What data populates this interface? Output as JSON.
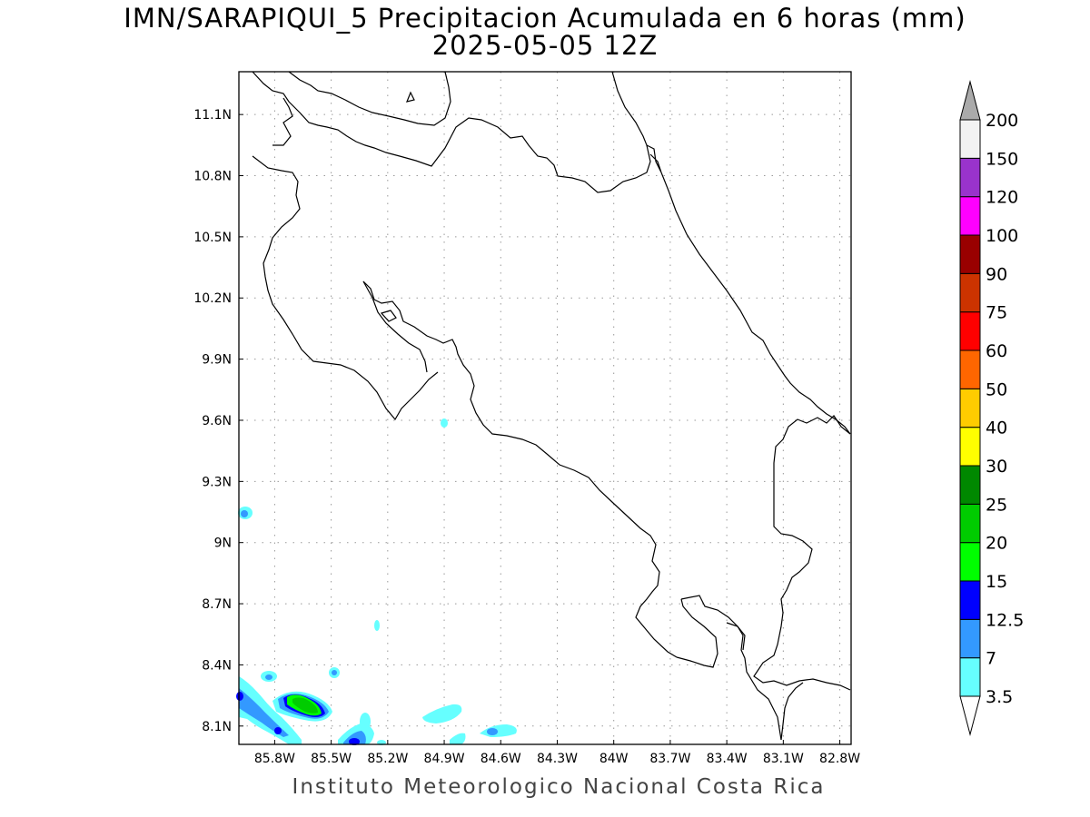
{
  "title_line1": "IMN/SARAPIQUI_5 Precipitacion Acumulada en 6 horas (mm)",
  "title_line2": "2025-05-05 12Z",
  "footer": "Instituto Meteorologico Nacional Costa Rica",
  "map": {
    "lon_range": [
      -85.99,
      -82.74
    ],
    "lat_range": [
      8.01,
      11.31
    ],
    "lon_ticks": [
      {
        "value": -85.8,
        "label": "85.8W"
      },
      {
        "value": -85.5,
        "label": "85.5W"
      },
      {
        "value": -85.2,
        "label": "85.2W"
      },
      {
        "value": -84.9,
        "label": "84.9W"
      },
      {
        "value": -84.6,
        "label": "84.6W"
      },
      {
        "value": -84.3,
        "label": "84.3W"
      },
      {
        "value": -84.0,
        "label": "84W"
      },
      {
        "value": -83.7,
        "label": "83.7W"
      },
      {
        "value": -83.4,
        "label": "83.4W"
      },
      {
        "value": -83.1,
        "label": "83.1W"
      },
      {
        "value": -82.8,
        "label": "82.8W"
      }
    ],
    "lat_ticks": [
      {
        "value": 11.1,
        "label": "11.1N"
      },
      {
        "value": 10.8,
        "label": "10.8N"
      },
      {
        "value": 10.5,
        "label": "10.5N"
      },
      {
        "value": 10.2,
        "label": "10.2N"
      },
      {
        "value": 9.9,
        "label": "9.9N"
      },
      {
        "value": 9.6,
        "label": "9.6N"
      },
      {
        "value": 9.3,
        "label": "9.3N"
      },
      {
        "value": 9.0,
        "label": "9N"
      },
      {
        "value": 8.7,
        "label": "8.7N"
      },
      {
        "value": 8.4,
        "label": "8.4N"
      },
      {
        "value": 8.1,
        "label": "8.1N"
      }
    ],
    "grid": "dotted"
  },
  "colorbar": {
    "levels": [
      "3.5",
      "7",
      "12.5",
      "15",
      "20",
      "25",
      "30",
      "40",
      "50",
      "60",
      "75",
      "90",
      "100",
      "120",
      "150",
      "200"
    ],
    "colors": [
      "#66ffff",
      "#3399ff",
      "#0000ff",
      "#00ff00",
      "#00cc00",
      "#008800",
      "#ffff00",
      "#ffcc00",
      "#ff6600",
      "#ff0000",
      "#cc3300",
      "#990000",
      "#ff00ff",
      "#9933cc",
      "#f2f2f2"
    ],
    "under_color": "#ffffff",
    "over_color": "#aaaaaa"
  },
  "colors": {
    "coastline": "#000000",
    "grid": "#999999"
  }
}
